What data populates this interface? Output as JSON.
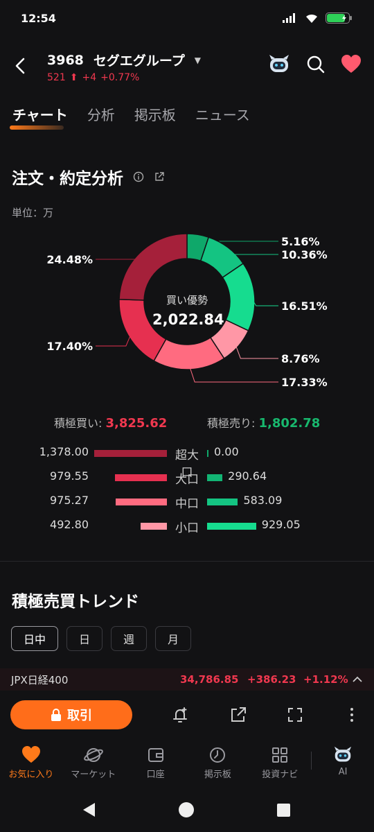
{
  "status": {
    "time": "12:54"
  },
  "header": {
    "code": "3968",
    "name": "セグエグループ",
    "price": "521",
    "change": "+4",
    "change_pct": "+0.77%"
  },
  "tabs": [
    {
      "label": "チャート",
      "active": true
    },
    {
      "label": "分析",
      "active": false
    },
    {
      "label": "掲示板",
      "active": false
    },
    {
      "label": "ニュース",
      "active": false
    }
  ],
  "order_analysis": {
    "title": "注文・約定分析",
    "unit": "単位：万",
    "center_label": "買い優勢",
    "center_value": "2,022.84",
    "segments": [
      {
        "label": "5.16%",
        "value": 5.16,
        "color": "#0fa86a"
      },
      {
        "label": "10.36%",
        "value": 10.36,
        "color": "#14c482"
      },
      {
        "label": "16.51%",
        "value": 16.51,
        "color": "#16dc8f"
      },
      {
        "label": "8.76%",
        "value": 8.76,
        "color": "#ff97a6"
      },
      {
        "label": "17.33%",
        "value": 17.33,
        "color": "#ff6b80"
      },
      {
        "label": "17.40%",
        "value": 17.4,
        "color": "#e63050"
      },
      {
        "label": "24.48%",
        "value": 24.48,
        "color": "#a5203a"
      }
    ],
    "buy_label": "積極買い:",
    "buy_total": "3,825.62",
    "sell_label": "積極売り:",
    "sell_total": "1,802.78",
    "rows": [
      {
        "category": "超大口",
        "buy": "1,378.00",
        "buy_amount": 1378.0,
        "sell": "0.00",
        "sell_amount": 0.0,
        "buy_color": "#a5203a",
        "sell_color": "#0fa86a"
      },
      {
        "category": "大口",
        "buy": "979.55",
        "buy_amount": 979.55,
        "sell": "290.64",
        "sell_amount": 290.64,
        "buy_color": "#e63050",
        "sell_color": "#12b574"
      },
      {
        "category": "中口",
        "buy": "975.27",
        "buy_amount": 975.27,
        "sell": "583.09",
        "sell_amount": 583.09,
        "buy_color": "#ff6b80",
        "sell_color": "#14c482"
      },
      {
        "category": "小口",
        "buy": "492.80",
        "buy_amount": 492.8,
        "sell": "929.05",
        "sell_amount": 929.05,
        "buy_color": "#ff97a6",
        "sell_color": "#16dc8f"
      }
    ]
  },
  "trend": {
    "title": "積極売買トレンド",
    "periods": [
      "日中",
      "日",
      "週",
      "月"
    ]
  },
  "index": {
    "name": "JPX日経400",
    "value": "34,786.85",
    "change": "+386.23",
    "change_pct": "+1.12%"
  },
  "trade_label": "取引",
  "nav": [
    {
      "label": "お気に入り",
      "icon": "heart-icon",
      "active": true
    },
    {
      "label": "マーケット",
      "icon": "planet-icon",
      "active": false
    },
    {
      "label": "口座",
      "icon": "wallet-icon",
      "active": false
    },
    {
      "label": "掲示板",
      "icon": "board-icon",
      "active": false
    },
    {
      "label": "投資ナビ",
      "icon": "grid-icon",
      "active": false
    },
    {
      "label": "AI",
      "icon": "robot-icon",
      "active": false
    }
  ]
}
